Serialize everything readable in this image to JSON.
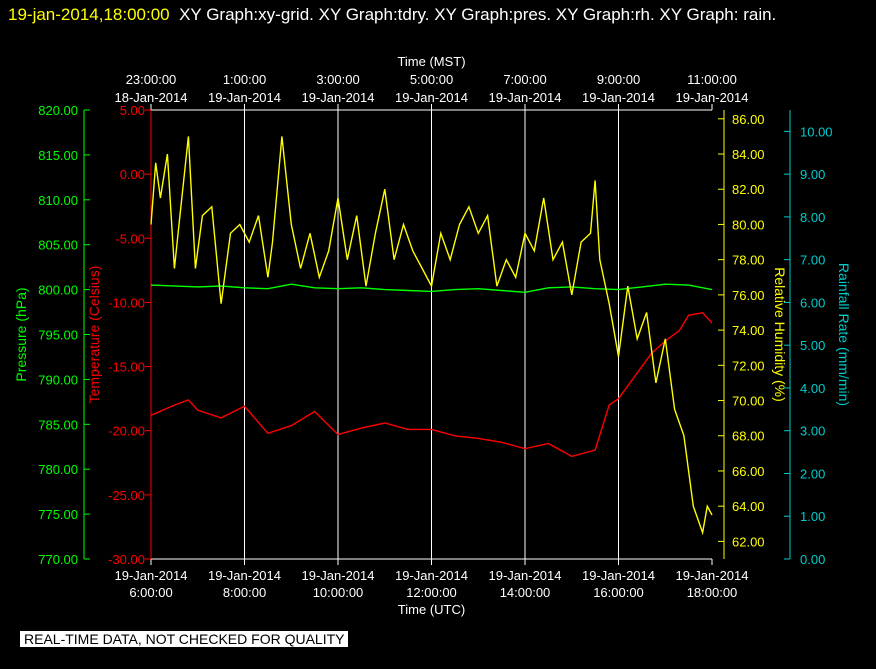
{
  "header": {
    "timestamp": "19-jan-2014,18:00:00",
    "titles": "XY Graph:xy-grid.  XY Graph:tdry.  XY Graph:pres.  XY Graph:rh.  XY Graph: rain."
  },
  "footer": {
    "notice": "REAL-TIME DATA, NOT CHECKED FOR QUALITY"
  },
  "colors": {
    "pressure": "#00ff00",
    "temperature": "#ff0000",
    "humidity": "#ffff00",
    "rain": "#00cccc",
    "grid": "#ffffff",
    "text": "#ffffff"
  },
  "chart_data": {
    "type": "line",
    "top_axis": {
      "label": "Time (MST)",
      "ticks": [
        {
          "time": "23:00:00",
          "date": "18-Jan-2014"
        },
        {
          "time": "1:00:00",
          "date": "19-Jan-2014"
        },
        {
          "time": "3:00:00",
          "date": "19-Jan-2014"
        },
        {
          "time": "5:00:00",
          "date": "19-Jan-2014"
        },
        {
          "time": "7:00:00",
          "date": "19-Jan-2014"
        },
        {
          "time": "9:00:00",
          "date": "19-Jan-2014"
        },
        {
          "time": "11:00:00",
          "date": "19-Jan-2014"
        }
      ]
    },
    "bottom_axis": {
      "label": "Time (UTC)",
      "ticks": [
        {
          "date": "19-Jan-2014",
          "time": "6:00:00"
        },
        {
          "date": "19-Jan-2014",
          "time": "8:00:00"
        },
        {
          "date": "19-Jan-2014",
          "time": "10:00:00"
        },
        {
          "date": "19-Jan-2014",
          "time": "12:00:00"
        },
        {
          "date": "19-Jan-2014",
          "time": "14:00:00"
        },
        {
          "date": "19-Jan-2014",
          "time": "16:00:00"
        },
        {
          "date": "19-Jan-2014",
          "time": "18:00:00"
        }
      ],
      "xlim_hours_utc": [
        6,
        18
      ]
    },
    "axes": {
      "pressure": {
        "label": "Pressure (hPa)",
        "ylim": [
          770,
          820
        ],
        "ticks": [
          "770.00",
          "775.00",
          "780.00",
          "785.00",
          "790.00",
          "795.00",
          "800.00",
          "805.00",
          "810.00",
          "815.00",
          "820.00"
        ]
      },
      "temperature": {
        "label": "Temperature (Celsius)",
        "ylim": [
          -30,
          5
        ],
        "ticks": [
          "-30.00",
          "-25.00",
          "-20.00",
          "-15.00",
          "-10.00",
          "-5.00",
          "0.00",
          "5.00"
        ]
      },
      "humidity": {
        "label": "Relative Humidity (%)",
        "ylim": [
          61,
          86.5
        ],
        "ticks": [
          "62.00",
          "64.00",
          "66.00",
          "68.00",
          "70.00",
          "72.00",
          "74.00",
          "76.00",
          "78.00",
          "80.00",
          "82.00",
          "84.00",
          "86.00"
        ]
      },
      "rain": {
        "label": "Rainfall Rate (mm/min)",
        "ylim": [
          0,
          10.5
        ],
        "ticks": [
          "0.00",
          "1.00",
          "2.00",
          "3.00",
          "4.00",
          "5.00",
          "6.00",
          "7.00",
          "8.00",
          "9.00",
          "10.00"
        ]
      }
    },
    "grid": true,
    "series": [
      {
        "name": "pres",
        "axis": "pressure",
        "x": [
          6,
          7,
          7.5,
          8,
          8.5,
          9,
          9.5,
          10,
          10.5,
          11,
          11.5,
          12,
          12.5,
          13,
          13.5,
          14,
          14.5,
          15,
          15.5,
          16,
          16.5,
          17,
          17.5,
          18
        ],
        "y": [
          800.5,
          800.3,
          800.4,
          800.2,
          800.1,
          800.6,
          800.2,
          800.1,
          800.2,
          800.0,
          799.9,
          799.8,
          800.0,
          800.1,
          799.9,
          799.7,
          800.2,
          800.3,
          800.1,
          800.0,
          800.3,
          800.6,
          800.5,
          800.0
        ]
      },
      {
        "name": "tdry",
        "axis": "temperature",
        "x": [
          6,
          6.5,
          6.8,
          7,
          7.5,
          8,
          8.5,
          9,
          9.5,
          10,
          10.5,
          11,
          11.5,
          12,
          12.5,
          13,
          13.5,
          14,
          14.5,
          15,
          15.5,
          15.8,
          16,
          16.3,
          16.7,
          17,
          17.3,
          17.5,
          17.8,
          18
        ],
        "y": [
          -18.8,
          -18.0,
          -17.6,
          -18.4,
          -19.0,
          -18.1,
          -20.2,
          -19.6,
          -18.5,
          -20.3,
          -19.8,
          -19.4,
          -19.9,
          -19.9,
          -20.4,
          -20.6,
          -20.9,
          -21.4,
          -21.0,
          -22.0,
          -21.5,
          -18.0,
          -17.5,
          -16.0,
          -14.0,
          -13.0,
          -12.2,
          -11.0,
          -10.8,
          -11.6
        ]
      },
      {
        "name": "rh",
        "axis": "humidity",
        "x": [
          6,
          6.1,
          6.2,
          6.35,
          6.5,
          6.6,
          6.8,
          6.95,
          7.1,
          7.3,
          7.5,
          7.7,
          7.9,
          8.1,
          8.3,
          8.5,
          8.6,
          8.8,
          9.0,
          9.2,
          9.4,
          9.6,
          9.8,
          10.0,
          10.2,
          10.4,
          10.6,
          10.8,
          11.0,
          11.2,
          11.4,
          11.6,
          11.8,
          12.0,
          12.2,
          12.4,
          12.6,
          12.8,
          13.0,
          13.2,
          13.4,
          13.6,
          13.8,
          14.0,
          14.2,
          14.4,
          14.6,
          14.8,
          15.0,
          15.2,
          15.4,
          15.5,
          15.6,
          15.8,
          16.0,
          16.2,
          16.4,
          16.6,
          16.8,
          17.0,
          17.2,
          17.4,
          17.6,
          17.8,
          17.9,
          18.0
        ],
        "y": [
          80.0,
          83.5,
          81.5,
          84.0,
          77.5,
          80.0,
          85.0,
          77.5,
          80.5,
          81.0,
          75.5,
          79.5,
          80.0,
          79.0,
          80.5,
          77.0,
          79.0,
          85.0,
          80.0,
          77.5,
          79.5,
          77.0,
          78.5,
          81.5,
          78.0,
          80.5,
          76.5,
          79.5,
          82.0,
          78.0,
          80.0,
          78.5,
          77.5,
          76.5,
          79.5,
          78.0,
          80.0,
          81.0,
          79.5,
          80.5,
          76.5,
          78.0,
          77.0,
          79.5,
          78.5,
          81.5,
          78.0,
          79.0,
          76.0,
          79.0,
          79.5,
          82.5,
          78.0,
          75.5,
          72.5,
          76.5,
          73.5,
          75.0,
          71.0,
          73.5,
          69.5,
          68.0,
          64.0,
          62.5,
          64.0,
          63.5
        ]
      }
    ]
  }
}
